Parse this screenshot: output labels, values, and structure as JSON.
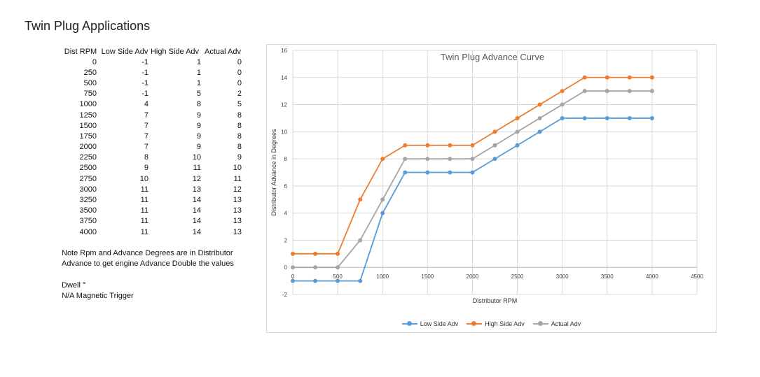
{
  "page": {
    "title": "Twin Plug Applications"
  },
  "table": {
    "headers": [
      "Dist RPM",
      "Low Side Adv",
      "High Side Adv",
      "Actual Adv"
    ],
    "rows": [
      [
        "0",
        "-1",
        "1",
        "0"
      ],
      [
        "250",
        "-1",
        "1",
        "0"
      ],
      [
        "500",
        "-1",
        "1",
        "0"
      ],
      [
        "750",
        "-1",
        "5",
        "2"
      ],
      [
        "1000",
        "4",
        "8",
        "5"
      ],
      [
        "1250",
        "7",
        "9",
        "8"
      ],
      [
        "1500",
        "7",
        "9",
        "8"
      ],
      [
        "1750",
        "7",
        "9",
        "8"
      ],
      [
        "2000",
        "7",
        "9",
        "8"
      ],
      [
        "2250",
        "8",
        "10",
        "9"
      ],
      [
        "2500",
        "9",
        "11",
        "10"
      ],
      [
        "2750",
        "10",
        "12",
        "11"
      ],
      [
        "3000",
        "11",
        "13",
        "12"
      ],
      [
        "3250",
        "11",
        "14",
        "13"
      ],
      [
        "3500",
        "11",
        "14",
        "13"
      ],
      [
        "3750",
        "11",
        "14",
        "13"
      ],
      [
        "4000",
        "11",
        "14",
        "13"
      ]
    ]
  },
  "notes": {
    "line1": "Note Rpm and Advance Degrees are in Distributor",
    "line2": "Advance  to get engine Advance Double the values",
    "dwell": "Dwell °",
    "trigger": "N/A Magnetic Trigger"
  },
  "chart_data": {
    "type": "line",
    "title": "Twin Plug Advance Curve",
    "xlabel": "Distributor RPM",
    "ylabel": "Distributor Advance in Degrees",
    "xlim": [
      0,
      4500
    ],
    "ylim": [
      -2,
      16
    ],
    "xticks": [
      0,
      500,
      1000,
      1500,
      2000,
      2500,
      3000,
      3500,
      4000,
      4500
    ],
    "yticks": [
      -2,
      0,
      2,
      4,
      6,
      8,
      10,
      12,
      14,
      16
    ],
    "grid": true,
    "legend_position": "bottom",
    "x": [
      0,
      250,
      500,
      750,
      1000,
      1250,
      1500,
      1750,
      2000,
      2250,
      2500,
      2750,
      3000,
      3250,
      3500,
      3750,
      4000
    ],
    "series": [
      {
        "name": "Low Side Adv",
        "color": "#5b9bd5",
        "values": [
          -1,
          -1,
          -1,
          -1,
          4,
          7,
          7,
          7,
          7,
          8,
          9,
          10,
          11,
          11,
          11,
          11,
          11
        ]
      },
      {
        "name": "High Side Adv",
        "color": "#ed7d31",
        "values": [
          1,
          1,
          1,
          5,
          8,
          9,
          9,
          9,
          9,
          10,
          11,
          12,
          13,
          14,
          14,
          14,
          14
        ]
      },
      {
        "name": "Actual Adv",
        "color": "#a5a5a5",
        "values": [
          0,
          0,
          0,
          2,
          5,
          8,
          8,
          8,
          8,
          9,
          10,
          11,
          12,
          13,
          13,
          13,
          13
        ]
      }
    ]
  }
}
